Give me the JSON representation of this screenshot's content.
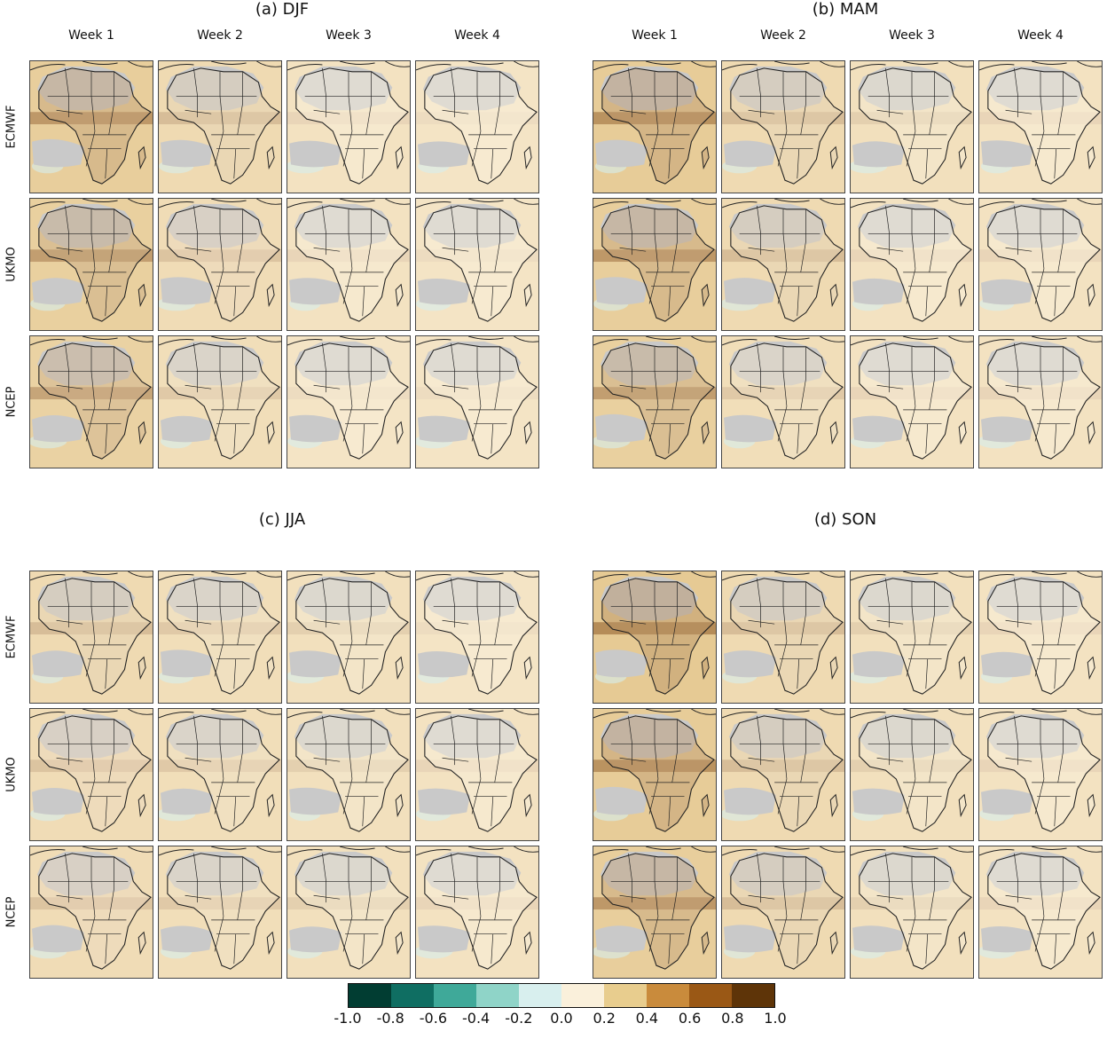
{
  "figure": {
    "panels": [
      {
        "title": "(a) DJF",
        "rows": [
          "ECMWF",
          "UKMO",
          "NCEP"
        ],
        "cols": [
          "Week 1",
          "Week 2",
          "Week 3",
          "Week 4"
        ]
      },
      {
        "title": "(b) MAM",
        "rows": [],
        "cols": [
          "Week 1",
          "Week 2",
          "Week 3",
          "Week 4"
        ]
      },
      {
        "title": "(c) JJA",
        "rows": [
          "ECMWF",
          "UKMO",
          "NCEP"
        ],
        "cols": []
      },
      {
        "title": "(d) SON",
        "rows": [],
        "cols": []
      }
    ],
    "colorbar": {
      "ticks": [
        "-1.0",
        "-0.8",
        "-0.6",
        "-0.4",
        "-0.2",
        "0.0",
        "0.2",
        "0.4",
        "0.6",
        "0.8",
        "1.0"
      ],
      "colors": [
        "#013d32",
        "#0f6e62",
        "#3fa999",
        "#8fd4c8",
        "#d8efee",
        "#faf0db",
        "#e8cd8e",
        "#c98b3c",
        "#9a5815",
        "#5e3408"
      ]
    },
    "intensity": [
      [
        [
          0.85,
          0.55,
          0.35,
          0.3
        ],
        [
          0.8,
          0.5,
          0.35,
          0.3
        ],
        [
          0.75,
          0.45,
          0.3,
          0.3
        ]
      ],
      [
        [
          0.9,
          0.55,
          0.4,
          0.35
        ],
        [
          0.85,
          0.55,
          0.35,
          0.35
        ],
        [
          0.8,
          0.45,
          0.35,
          0.35
        ]
      ],
      [
        [
          0.55,
          0.45,
          0.4,
          0.3
        ],
        [
          0.5,
          0.45,
          0.4,
          0.35
        ],
        [
          0.5,
          0.45,
          0.4,
          0.35
        ]
      ],
      [
        [
          0.95,
          0.55,
          0.4,
          0.35
        ],
        [
          0.9,
          0.55,
          0.4,
          0.35
        ],
        [
          0.85,
          0.55,
          0.4,
          0.35
        ]
      ]
    ]
  }
}
